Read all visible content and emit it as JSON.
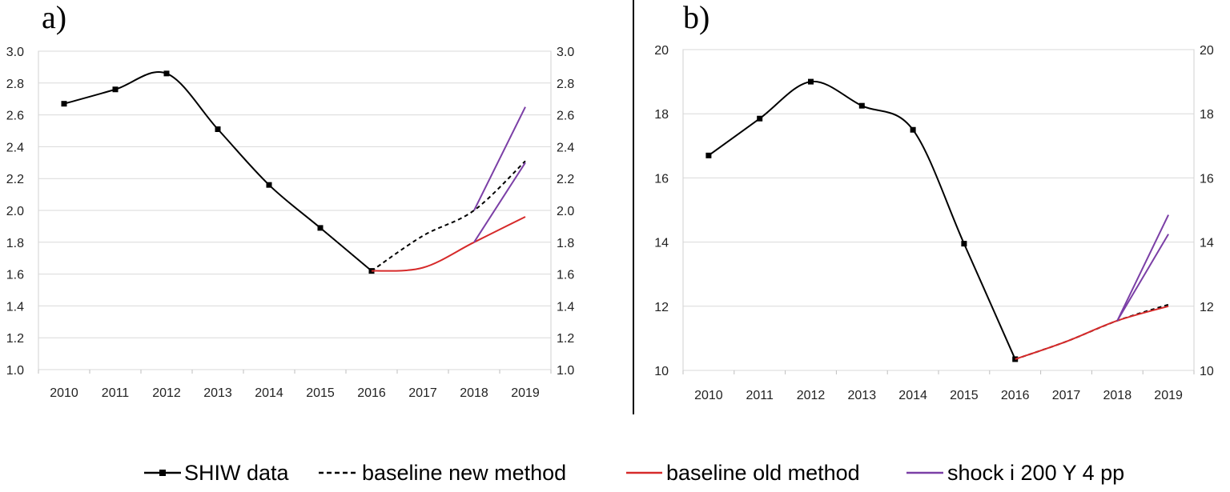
{
  "chart_data": [
    {
      "type": "line",
      "panel_label": "a)",
      "categories": [
        "2010",
        "2011",
        "2012",
        "2013",
        "2014",
        "2015",
        "2016",
        "2017",
        "2018",
        "2019"
      ],
      "ylim": [
        1.0,
        3.0
      ],
      "yticks": [
        "1.0",
        "1.2",
        "1.4",
        "1.6",
        "1.8",
        "2.0",
        "2.2",
        "2.4",
        "2.6",
        "2.8",
        "3.0"
      ],
      "grid": true,
      "secondary_y_axis": true,
      "series": [
        {
          "name": "SHIW data",
          "color": "#000000",
          "style": "solid-marker",
          "x": [
            "2010",
            "2011",
            "2012",
            "2013",
            "2014",
            "2015",
            "2016"
          ],
          "values": [
            2.67,
            2.76,
            2.86,
            2.51,
            2.16,
            1.89,
            1.62
          ]
        },
        {
          "name": "baseline new method",
          "color": "#000000",
          "style": "dashed",
          "x": [
            "2016",
            "2017",
            "2018",
            "2019"
          ],
          "values": [
            1.62,
            1.84,
            2.0,
            2.31
          ]
        },
        {
          "name": "baseline old method",
          "color": "#d62a2a",
          "style": "solid",
          "x": [
            "2016",
            "2017",
            "2018",
            "2019"
          ],
          "values": [
            1.62,
            1.64,
            1.8,
            1.96
          ]
        },
        {
          "name": "shock i 200 Y 4 pp",
          "color": "#7b3fa6",
          "style": "solid",
          "segments": [
            {
              "x": [
                "2018",
                "2019"
              ],
              "values": [
                2.0,
                2.65
              ]
            },
            {
              "x": [
                "2018",
                "2019"
              ],
              "values": [
                1.8,
                2.3
              ]
            }
          ]
        }
      ]
    },
    {
      "type": "line",
      "panel_label": "b)",
      "categories": [
        "2010",
        "2011",
        "2012",
        "2013",
        "2014",
        "2015",
        "2016",
        "2017",
        "2018",
        "2019"
      ],
      "ylim": [
        10,
        20
      ],
      "yticks": [
        "10",
        "12",
        "14",
        "16",
        "18",
        "20"
      ],
      "grid": true,
      "secondary_y_axis": true,
      "series": [
        {
          "name": "SHIW data",
          "color": "#000000",
          "style": "solid-marker",
          "x": [
            "2010",
            "2011",
            "2012",
            "2013",
            "2014",
            "2015",
            "2016"
          ],
          "values": [
            16.7,
            17.85,
            19.0,
            18.25,
            17.5,
            13.95,
            10.35
          ]
        },
        {
          "name": "baseline new method",
          "color": "#000000",
          "style": "dashed",
          "x": [
            "2016",
            "2017",
            "2018",
            "2019"
          ],
          "values": [
            10.35,
            10.9,
            11.55,
            12.05
          ]
        },
        {
          "name": "baseline old method",
          "color": "#d62a2a",
          "style": "solid",
          "x": [
            "2016",
            "2017",
            "2018",
            "2019"
          ],
          "values": [
            10.35,
            10.9,
            11.55,
            12.0
          ]
        },
        {
          "name": "shock i 200 Y 4 pp",
          "color": "#7b3fa6",
          "style": "solid",
          "segments": [
            {
              "x": [
                "2018",
                "2019"
              ],
              "values": [
                11.55,
                14.85
              ]
            },
            {
              "x": [
                "2018",
                "2019"
              ],
              "values": [
                11.55,
                14.25
              ]
            }
          ]
        }
      ]
    }
  ],
  "legend": {
    "placement": "bottom",
    "items": [
      {
        "label": "SHIW data",
        "color": "#000000",
        "style": "solid-marker"
      },
      {
        "label": "baseline new method",
        "color": "#000000",
        "style": "dashed"
      },
      {
        "label": "baseline old method",
        "color": "#d62a2a",
        "style": "solid"
      },
      {
        "label": "shock i 200 Y 4 pp",
        "color": "#7b3fa6",
        "style": "solid"
      }
    ]
  }
}
